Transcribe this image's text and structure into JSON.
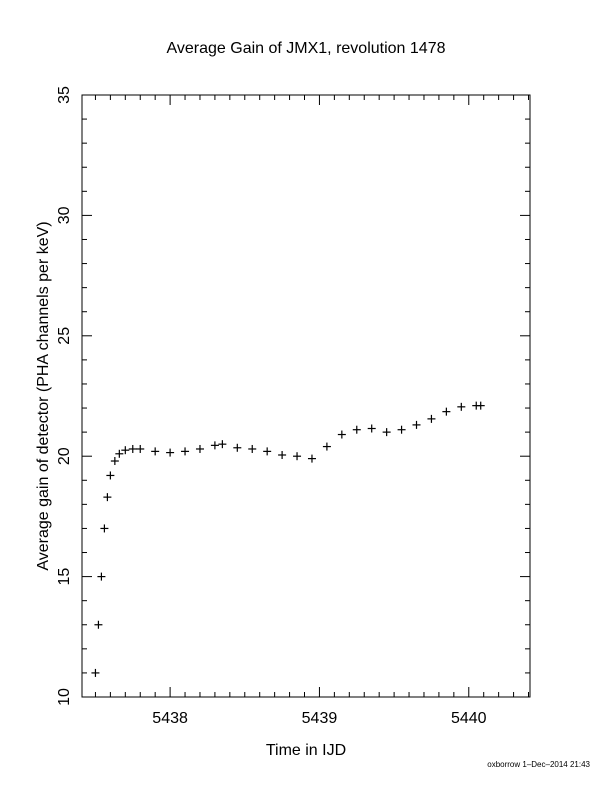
{
  "chart_data": {
    "type": "scatter",
    "title": "Average Gain of JMX1, revolution 1478",
    "xlabel": "Time in IJD",
    "ylabel": "Average gain of detector (PHA channels per keV)",
    "xlim": [
      5437.41,
      5440.41
    ],
    "ylim": [
      10,
      35
    ],
    "x_ticks": [
      5438,
      5439,
      5440
    ],
    "y_ticks": [
      10,
      15,
      20,
      25,
      30,
      35
    ],
    "x_tick_labels": [
      "5438",
      "5439",
      "5440"
    ],
    "y_tick_labels": [
      "10",
      "15",
      "20",
      "25",
      "30",
      "35"
    ],
    "marker": "plus",
    "series": [
      {
        "x": [
          5437.5,
          5437.52,
          5437.54,
          5437.56,
          5437.58,
          5437.6,
          5437.63,
          5437.66,
          5437.7,
          5437.75,
          5437.8,
          5437.9,
          5438.0,
          5438.1,
          5438.2,
          5438.3,
          5438.35,
          5438.45,
          5438.55,
          5438.65,
          5438.75,
          5438.85,
          5438.95,
          5439.05,
          5439.15,
          5439.25,
          5439.35,
          5439.45,
          5439.55,
          5439.65,
          5439.75,
          5439.85,
          5439.95,
          5440.05,
          5440.08
        ],
        "y": [
          11.0,
          13.0,
          15.0,
          17.0,
          18.3,
          19.2,
          19.8,
          20.1,
          20.25,
          20.3,
          20.3,
          20.2,
          20.15,
          20.2,
          20.3,
          20.45,
          20.5,
          20.35,
          20.3,
          20.2,
          20.05,
          20.0,
          19.9,
          20.4,
          20.9,
          21.1,
          21.15,
          21.0,
          21.1,
          21.3,
          21.55,
          21.85,
          22.05,
          22.1,
          22.1
        ]
      }
    ]
  },
  "footer_text": "oxborrow 1–Dec–2014 21:43"
}
